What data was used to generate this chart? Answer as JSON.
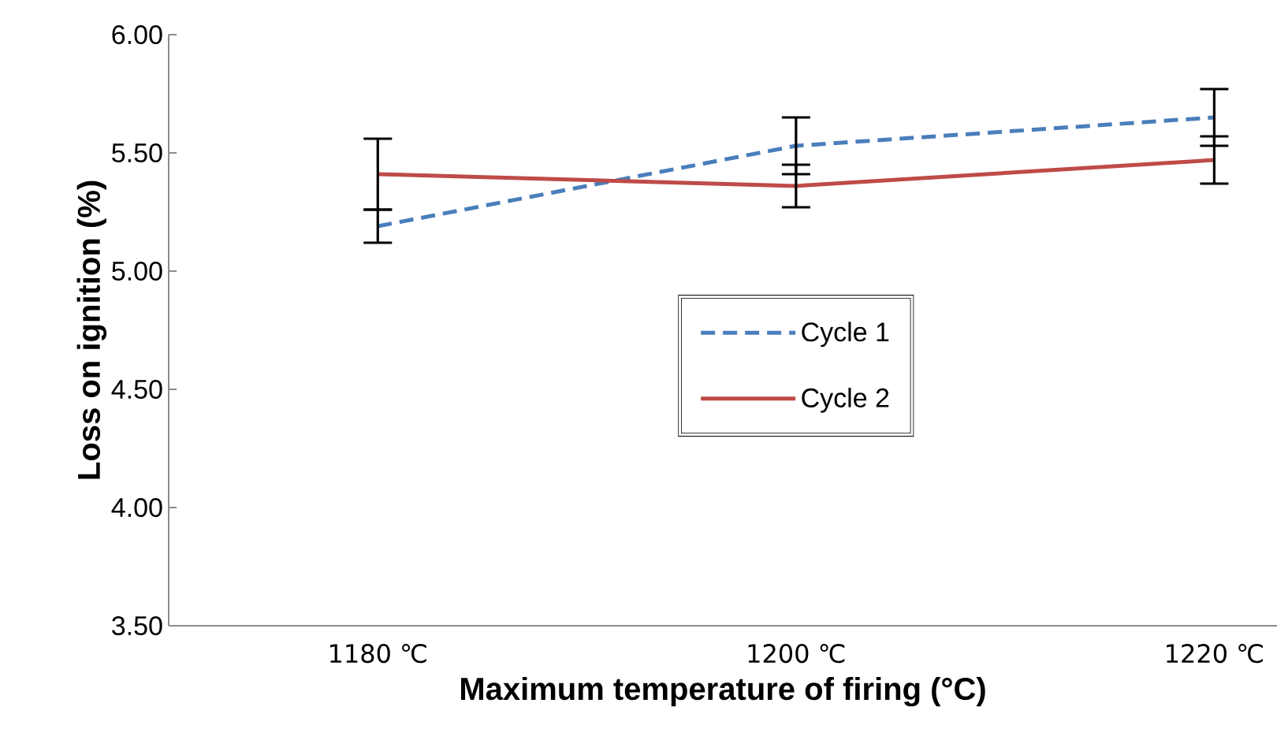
{
  "chart_data": {
    "type": "line",
    "xlabel": "Maximum temperature of firing (°C)",
    "ylabel": "Loss on ignition (%)",
    "categories": [
      "1180 ℃",
      "1200 ℃",
      "1220 ℃"
    ],
    "series": [
      {
        "name": "Cycle 1",
        "color": "#4a7ebb",
        "line_style": "dashed",
        "values": [
          5.19,
          5.53,
          5.65
        ],
        "errors": [
          0.07,
          0.12,
          0.12
        ]
      },
      {
        "name": "Cycle 2",
        "color": "#be4b48",
        "line_style": "solid",
        "values": [
          5.41,
          5.36,
          5.47
        ],
        "errors": [
          0.15,
          0.09,
          0.1
        ]
      }
    ],
    "ylim": [
      3.5,
      6.0
    ],
    "yticks": [
      {
        "value": 3.5,
        "label": "3.50"
      },
      {
        "value": 4.0,
        "label": "4.00"
      },
      {
        "value": 4.5,
        "label": "4.50"
      },
      {
        "value": 5.0,
        "label": "5.00"
      },
      {
        "value": 5.5,
        "label": "5.50"
      },
      {
        "value": 6.0,
        "label": "6.00"
      }
    ],
    "legend": "center",
    "grid": false,
    "marker": "none"
  }
}
